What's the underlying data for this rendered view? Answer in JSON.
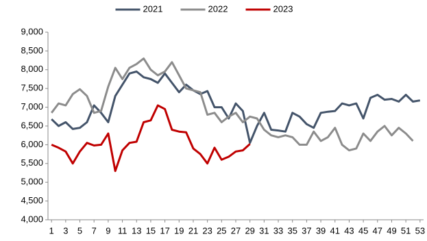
{
  "chart_data": {
    "type": "line",
    "x": [
      1,
      2,
      3,
      4,
      5,
      6,
      7,
      8,
      9,
      10,
      11,
      12,
      13,
      14,
      15,
      16,
      17,
      18,
      19,
      20,
      21,
      22,
      23,
      24,
      25,
      26,
      27,
      28,
      29,
      30,
      31,
      32,
      33,
      34,
      35,
      36,
      37,
      38,
      39,
      40,
      41,
      42,
      43,
      44,
      45,
      46,
      47,
      48,
      49,
      50,
      51,
      52,
      53
    ],
    "xlim": [
      0.5,
      53.5
    ],
    "xticks": [
      1,
      3,
      5,
      7,
      9,
      11,
      13,
      15,
      17,
      19,
      21,
      23,
      25,
      27,
      29,
      31,
      33,
      35,
      37,
      39,
      41,
      43,
      45,
      47,
      49,
      51,
      53
    ],
    "ylim": [
      4000,
      9000
    ],
    "yticks": [
      {
        "value": 4000,
        "label": "4,000"
      },
      {
        "value": 4500,
        "label": "4,500"
      },
      {
        "value": 5000,
        "label": "5,000"
      },
      {
        "value": 5500,
        "label": "5,500"
      },
      {
        "value": 6000,
        "label": "6,000"
      },
      {
        "value": 6500,
        "label": "6,500"
      },
      {
        "value": 7000,
        "label": "7,000"
      },
      {
        "value": 7500,
        "label": "7,500"
      },
      {
        "value": 8000,
        "label": "8,000"
      },
      {
        "value": 8500,
        "label": "8,500"
      },
      {
        "value": 9000,
        "label": "9,000"
      }
    ],
    "legend": "top",
    "series": [
      {
        "name": "2021",
        "color": "#44546a",
        "values": [
          6680,
          6500,
          6600,
          6420,
          6450,
          6600,
          7050,
          6850,
          6600,
          7300,
          7600,
          7900,
          7950,
          7800,
          7750,
          7650,
          7900,
          7650,
          7400,
          7600,
          7450,
          7350,
          7430,
          7000,
          7000,
          6700,
          7100,
          6900,
          6050,
          6500,
          6850,
          6400,
          6380,
          6350,
          6850,
          6750,
          6550,
          6450,
          6850,
          6880,
          6900,
          7100,
          7050,
          7100,
          6700,
          7250,
          7330,
          7200,
          7220,
          7150,
          7330,
          7150,
          7180
        ]
      },
      {
        "name": "2022",
        "color": "#8c8c8c",
        "values": [
          6850,
          7100,
          7050,
          7350,
          7480,
          7300,
          6850,
          6900,
          7550,
          8050,
          7750,
          8050,
          8150,
          8300,
          8000,
          7850,
          7950,
          8200,
          7850,
          7500,
          7450,
          7400,
          6800,
          6850,
          6600,
          6750,
          6850,
          6600,
          6750,
          6700,
          6400,
          6250,
          6200,
          6250,
          6200,
          6000,
          6000,
          6350,
          6100,
          6200,
          6450,
          6000,
          5850,
          5900,
          6300,
          6100,
          6350,
          6500,
          6250,
          6450,
          6300,
          6100,
          null
        ]
      },
      {
        "name": "2023",
        "color": "#c00000",
        "values": [
          6000,
          5920,
          5820,
          5500,
          5820,
          6050,
          5980,
          6000,
          6300,
          5300,
          5850,
          6050,
          6080,
          6600,
          6650,
          7050,
          6950,
          6400,
          6350,
          6330,
          5900,
          5750,
          5500,
          5920,
          5600,
          5680,
          5820,
          5850,
          6020,
          null,
          null,
          null,
          null,
          null,
          null,
          null,
          null,
          null,
          null,
          null,
          null,
          null,
          null,
          null,
          null,
          null,
          null,
          null,
          null,
          null,
          null,
          null,
          null
        ]
      }
    ]
  }
}
